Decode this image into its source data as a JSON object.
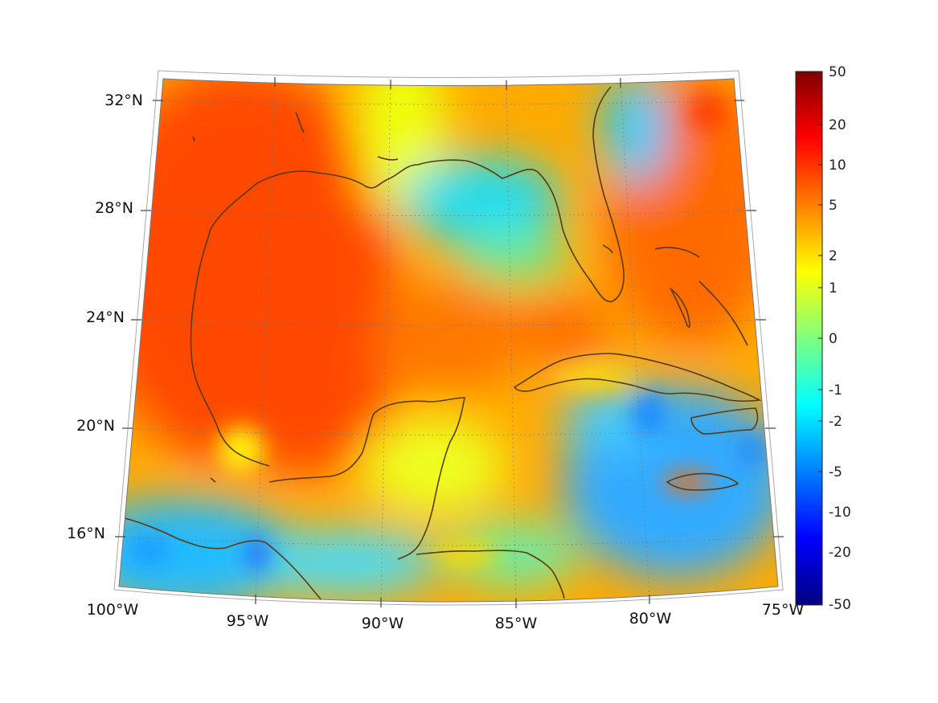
{
  "map": {
    "projection": "conic",
    "field_colormap": "jet",
    "coastline_color": "#5a3a12",
    "grid_style": "dotted"
  },
  "lat_labels": [
    "32°N",
    "28°N",
    "24°N",
    "20°N",
    "16°N"
  ],
  "lon_labels": [
    "100°W",
    "95°W",
    "90°W",
    "85°W",
    "80°W",
    "75°W"
  ],
  "colorbar": {
    "colormap": "jet",
    "tick_labels": [
      "50",
      "20",
      "10",
      "5",
      "2",
      "1",
      "0",
      "-1",
      "-2",
      "-5",
      "-10",
      "-20",
      "-50"
    ],
    "range": [
      -50,
      50
    ],
    "scale": "symmetric-log"
  }
}
